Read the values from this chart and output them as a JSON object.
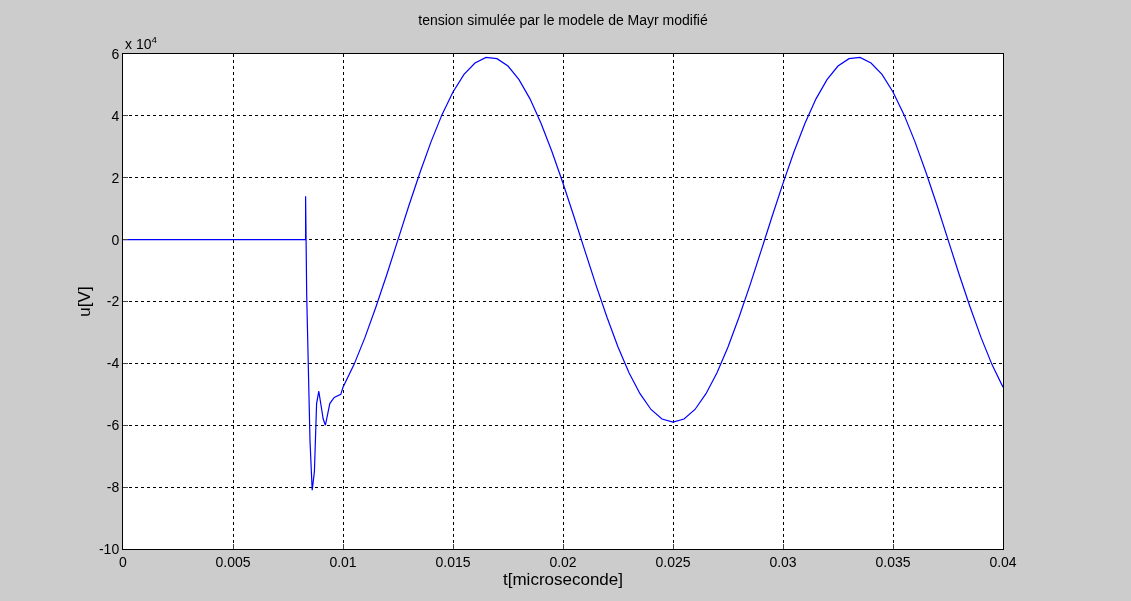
{
  "chart_data": {
    "type": "line",
    "title": "tension simulée par le modele de Mayr modifié",
    "xlabel": "t[microseconde]",
    "ylabel": "u[V]",
    "annotations": [
      "x 10$^{4}$"
    ],
    "series": [
      {
        "color": "#0000ff",
        "x": [
          0,
          0.0083,
          0.0083,
          0.00835,
          0.0085,
          0.0086,
          0.0087,
          0.0088,
          0.0089,
          0.0091,
          0.0092,
          0.0094,
          0.0096,
          0.0099,
          0.01,
          0.0105,
          0.011,
          0.0115,
          0.012,
          0.0125,
          0.013,
          0.0135,
          0.014,
          0.0145,
          0.015,
          0.0155,
          0.016,
          0.0165,
          0.017,
          0.0175,
          0.018,
          0.0185,
          0.019,
          0.0195,
          0.02,
          0.0205,
          0.021,
          0.0215,
          0.022,
          0.0225,
          0.023,
          0.0235,
          0.024,
          0.0245,
          0.025,
          0.0255,
          0.026,
          0.0265,
          0.027,
          0.0275,
          0.028,
          0.0285,
          0.029,
          0.0295,
          0.03,
          0.0305,
          0.031,
          0.0315,
          0.032,
          0.0325,
          0.033,
          0.0335,
          0.034,
          0.0345,
          0.035,
          0.0355,
          0.036,
          0.0365,
          0.037,
          0.0375,
          0.038,
          0.0385,
          0.039,
          0.0395,
          0.04
        ],
        "values": [
          0,
          0,
          1.4,
          -1.8,
          -6.5,
          -8.1,
          -7.5,
          -5.3,
          -4.9,
          -5.8,
          -6.0,
          -5.3,
          -5.1,
          -5.0,
          -4.77,
          -4.04,
          -3.16,
          -2.17,
          -1.11,
          0,
          1.11,
          2.17,
          3.16,
          4.04,
          4.77,
          5.34,
          5.71,
          5.89,
          5.85,
          5.61,
          5.17,
          4.55,
          3.76,
          2.84,
          1.82,
          0.74,
          -0.37,
          -1.47,
          -2.51,
          -3.47,
          -4.3,
          -4.98,
          -5.49,
          -5.8,
          -5.9,
          -5.8,
          -5.49,
          -4.98,
          -4.3,
          -3.47,
          -2.51,
          -1.47,
          -0.37,
          0.74,
          1.82,
          2.84,
          3.76,
          4.55,
          5.17,
          5.61,
          5.85,
          5.89,
          5.71,
          5.34,
          4.77,
          4.04,
          3.16,
          2.17,
          1.11,
          0,
          -1.11,
          -2.17,
          -3.16,
          -4.04,
          -4.77
        ]
      }
    ],
    "xlim": [
      0,
      0.04
    ],
    "xticks": [
      0,
      0.005,
      0.01,
      0.015,
      0.02,
      0.025,
      0.03,
      0.035,
      0.04
    ],
    "ylim": [
      -10,
      6
    ],
    "yticks": [
      -10,
      -8,
      -6,
      -4,
      -2,
      0,
      2,
      4,
      6
    ],
    "grid": true,
    "marker": "none",
    "line_style": "solid"
  }
}
